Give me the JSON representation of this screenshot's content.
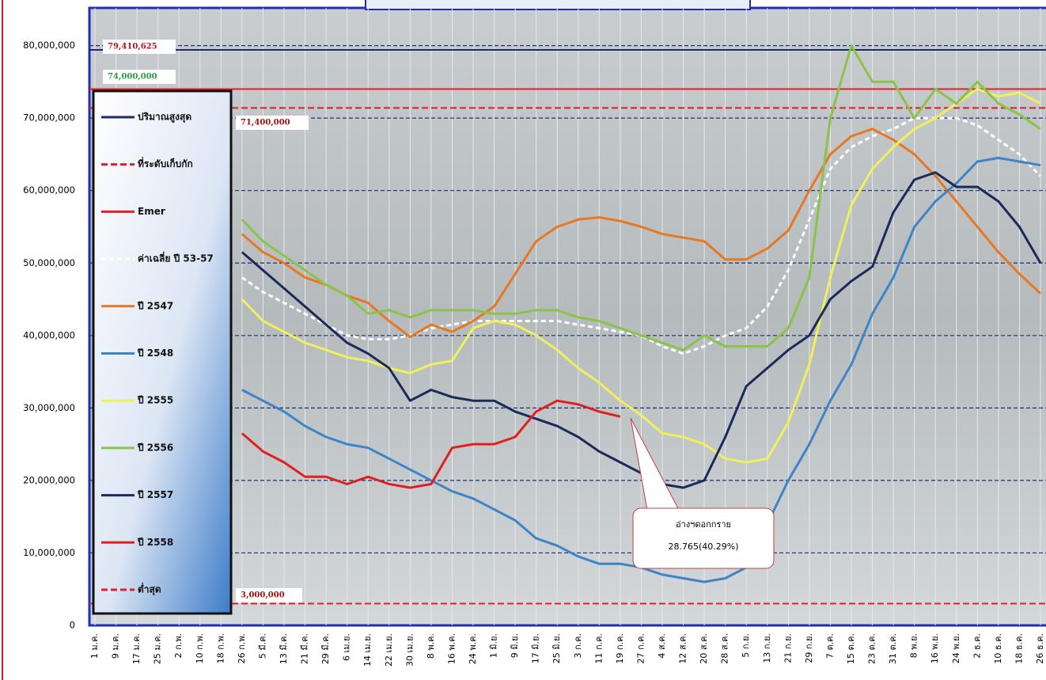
{
  "chart_data": {
    "type": "line",
    "categories": [
      "1 ม.ค.",
      "9 ม.ค.",
      "17 ม.ค.",
      "25 ม.ค.",
      "2 ก.พ.",
      "10 ก.พ.",
      "18 ก.พ.",
      "26 ก.พ.",
      "5 มี.ค.",
      "13 มี.ค.",
      "21 มี.ค.",
      "29 มี.ค.",
      "6 เม.ย.",
      "14 เม.ย.",
      "22 เม.ย.",
      "30 เม.ย.",
      "8 พ.ค.",
      "16 พ.ค.",
      "24 พ.ค.",
      "1 มิ.ย.",
      "9 มิ.ย.",
      "17 มิ.ย.",
      "25 มิ.ย.",
      "3 ก.ค.",
      "11 ก.ค.",
      "19 ก.ค.",
      "27 ก.ค.",
      "4 ส.ค.",
      "12 ส.ค.",
      "20 ส.ค.",
      "28 ส.ค.",
      "5 ก.ย.",
      "13 ก.ย.",
      "21 ก.ย.",
      "29 ก.ย.",
      "7 ต.ค.",
      "15 ต.ค.",
      "23 ต.ค.",
      "31 ต.ค.",
      "8 พ.ย.",
      "16 พ.ย.",
      "24 พ.ย.",
      "2 ธ.ค.",
      "10 ธ.ค.",
      "18 ธ.ค.",
      "26 ธ.ค."
    ],
    "ylim": [
      0,
      85200000
    ],
    "yticks": [
      0,
      {
        "value": 10000000,
        "label": "10,000,000"
      },
      {
        "value": 20000000,
        "label": "20,000,000"
      },
      {
        "value": 30000000,
        "label": "30,000,000"
      },
      {
        "value": 40000000,
        "label": "40,000,000"
      },
      {
        "value": 50000000,
        "label": "50,000,000"
      },
      {
        "value": 60000000,
        "label": "60,000,000"
      },
      {
        "value": 70000000,
        "label": "70,000,000"
      },
      {
        "value": 80000000,
        "label": "80,000,000"
      }
    ],
    "grid": true,
    "legend": "left",
    "series": [
      {
        "name": "ปริมาณสูงสุด",
        "color": "#1c2a66",
        "dashed": false,
        "value": 79410625,
        "value_label": "79,410,625",
        "label_color": "#c0101a"
      },
      {
        "name": "ที่ระดับเก็บกัก",
        "color": "#d81e2c",
        "dashed": true,
        "value": 71400000,
        "value_label": "71,400,000",
        "label_color": "#a01010"
      },
      {
        "name": "Emer",
        "color": "#e0202a",
        "dashed": false,
        "value": 74000000,
        "value_label": "74,000,000",
        "label_color": "#2a9a3a"
      },
      {
        "name": "ค่าเฉลี่ย ปี 53-57",
        "color": "#ffffff",
        "dashed": true,
        "values": [
          null,
          null,
          null,
          null,
          null,
          null,
          null,
          48000000,
          46000000,
          44500000,
          43000000,
          41500000,
          40000000,
          39500000,
          39500000,
          40000000,
          41000000,
          41500000,
          42000000,
          42000000,
          42000000,
          42000000,
          42000000,
          41500000,
          41000000,
          40500000,
          40000000,
          38500000,
          37500000,
          38500000,
          40000000,
          41000000,
          44000000,
          49000000,
          56000000,
          63000000,
          66000000,
          67500000,
          68500000,
          70000000,
          70000000,
          70000000,
          69000000,
          67000000,
          65000000,
          62000000
        ]
      },
      {
        "name": "ปี 2547",
        "color": "#e87722",
        "dashed": false,
        "values": [
          null,
          null,
          null,
          null,
          null,
          null,
          null,
          54000000,
          51500000,
          50000000,
          48000000,
          47000000,
          45500000,
          44500000,
          42000000,
          39800000,
          41500000,
          40500000,
          42000000,
          44000000,
          48500000,
          53000000,
          55000000,
          56000000,
          56300000,
          55800000,
          55000000,
          54000000,
          53500000,
          53000000,
          50500000,
          50500000,
          52000000,
          54500000,
          60000000,
          65000000,
          67500000,
          68500000,
          67000000,
          65000000,
          62000000,
          58500000,
          55000000,
          51500000,
          48500000,
          45800000
        ]
      },
      {
        "name": "ปี 2548",
        "color": "#3d85c6",
        "dashed": false,
        "values": [
          null,
          null,
          null,
          null,
          null,
          null,
          null,
          32500000,
          31000000,
          29500000,
          27500000,
          26000000,
          25000000,
          24500000,
          23000000,
          21500000,
          20000000,
          18500000,
          17500000,
          16000000,
          14500000,
          12000000,
          11000000,
          9500000,
          8500000,
          8500000,
          8000000,
          7000000,
          6500000,
          6000000,
          6500000,
          8000000,
          14000000,
          20000000,
          25000000,
          31000000,
          36000000,
          43000000,
          48000000,
          55000000,
          58500000,
          61000000,
          64000000,
          64500000,
          64000000,
          63500000
        ]
      },
      {
        "name": "ปี 2555",
        "color": "#f0f05a",
        "dashed": false,
        "values": [
          null,
          null,
          null,
          null,
          null,
          null,
          null,
          45000000,
          42000000,
          40500000,
          39000000,
          38000000,
          37000000,
          36500000,
          35500000,
          34800000,
          36000000,
          36500000,
          41000000,
          42000000,
          41500000,
          40000000,
          38000000,
          35500000,
          33500000,
          31000000,
          29000000,
          26500000,
          26000000,
          25000000,
          23000000,
          22500000,
          23000000,
          28000000,
          36000000,
          48000000,
          58000000,
          63000000,
          66000000,
          68500000,
          70000000,
          72000000,
          74000000,
          73000000,
          73500000,
          72000000
        ]
      },
      {
        "name": "ปี 2556",
        "color": "#8bc34a",
        "dashed": false,
        "values": [
          null,
          null,
          null,
          null,
          null,
          null,
          null,
          56000000,
          53000000,
          51000000,
          49000000,
          47000000,
          45500000,
          43000000,
          43500000,
          42500000,
          43500000,
          43500000,
          43500000,
          43000000,
          43000000,
          43500000,
          43500000,
          42500000,
          42000000,
          41000000,
          40000000,
          39000000,
          38000000,
          40000000,
          38500000,
          38500000,
          38500000,
          41000000,
          48000000,
          70000000,
          80000000,
          75000000,
          75000000,
          70000000,
          74000000,
          72000000,
          75000000,
          72000000,
          70500000,
          68500000
        ]
      },
      {
        "name": "ปี 2557",
        "color": "#1a2a5a",
        "dashed": false,
        "values": [
          null,
          null,
          null,
          null,
          null,
          null,
          null,
          51500000,
          49000000,
          46500000,
          44000000,
          41500000,
          39000000,
          37500000,
          35500000,
          31000000,
          32500000,
          31500000,
          31000000,
          31000000,
          29500000,
          28500000,
          27500000,
          26000000,
          24000000,
          22500000,
          21000000,
          19500000,
          19000000,
          20000000,
          26000000,
          33000000,
          35500000,
          38000000,
          40000000,
          45000000,
          47500000,
          49500000,
          57000000,
          61500000,
          62500000,
          60500000,
          60500000,
          58500000,
          55000000,
          50000000
        ]
      },
      {
        "name": "ปี 2558",
        "color": "#e02020",
        "dashed": false,
        "values": [
          null,
          null,
          null,
          null,
          null,
          null,
          null,
          26500000,
          24000000,
          22500000,
          20500000,
          20500000,
          19500000,
          20500000,
          19500000,
          19000000,
          19500000,
          24500000,
          25000000,
          25000000,
          26000000,
          29500000,
          31000000,
          30500000,
          29500000,
          28800000,
          null,
          null,
          null,
          null,
          null,
          null,
          null,
          null,
          null,
          null,
          null,
          null,
          null,
          null,
          null,
          null,
          null,
          null,
          null,
          null
        ]
      },
      {
        "name": "ต่ำสุด",
        "color": "#e02030",
        "dashed": true,
        "value": 3000000,
        "value_label": "3,000,000",
        "label_color": "#a01010"
      }
    ],
    "annotation": [
      "อ่างฯดอกกราย",
      "28.765(40.29%)"
    ]
  }
}
